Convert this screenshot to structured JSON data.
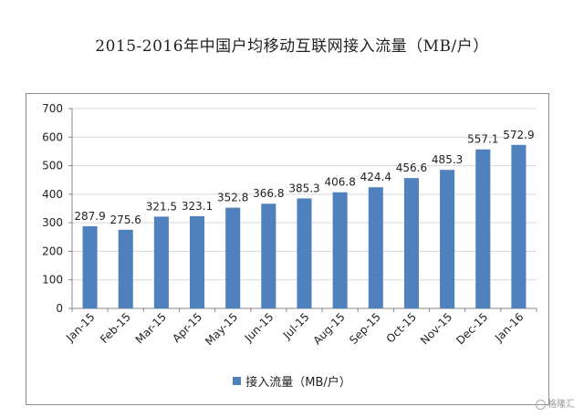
{
  "title": "2015-2016年中国户均移动互联网接入流量（MB/户）",
  "watermark": "格隆汇",
  "colors": {
    "bar": "#4f81bd",
    "grid": "#d9d9d9",
    "axis": "#888888"
  },
  "chart_data": {
    "type": "bar",
    "title": "2015-2016年中国户均移动互联网接入流量（MB/户）",
    "categories": [
      "Jan-15",
      "Feb-15",
      "Mar-15",
      "Apr-15",
      "May-15",
      "Jun-15",
      "Jul-15",
      "Aug-15",
      "Sep-15",
      "Oct-15",
      "Nov-15",
      "Dec-15",
      "Jan-16"
    ],
    "series": [
      {
        "name": "接入流量（MB/户）",
        "values": [
          287.9,
          275.6,
          321.5,
          323.1,
          352.8,
          366.8,
          385.3,
          406.8,
          424.4,
          456.6,
          485.3,
          557.1,
          572.9
        ]
      }
    ],
    "ylim": [
      0,
      700
    ],
    "yticks": [
      0,
      100,
      200,
      300,
      400,
      500,
      600,
      700
    ],
    "grid": true,
    "legend": "bottom",
    "xlabel": "",
    "ylabel": ""
  }
}
